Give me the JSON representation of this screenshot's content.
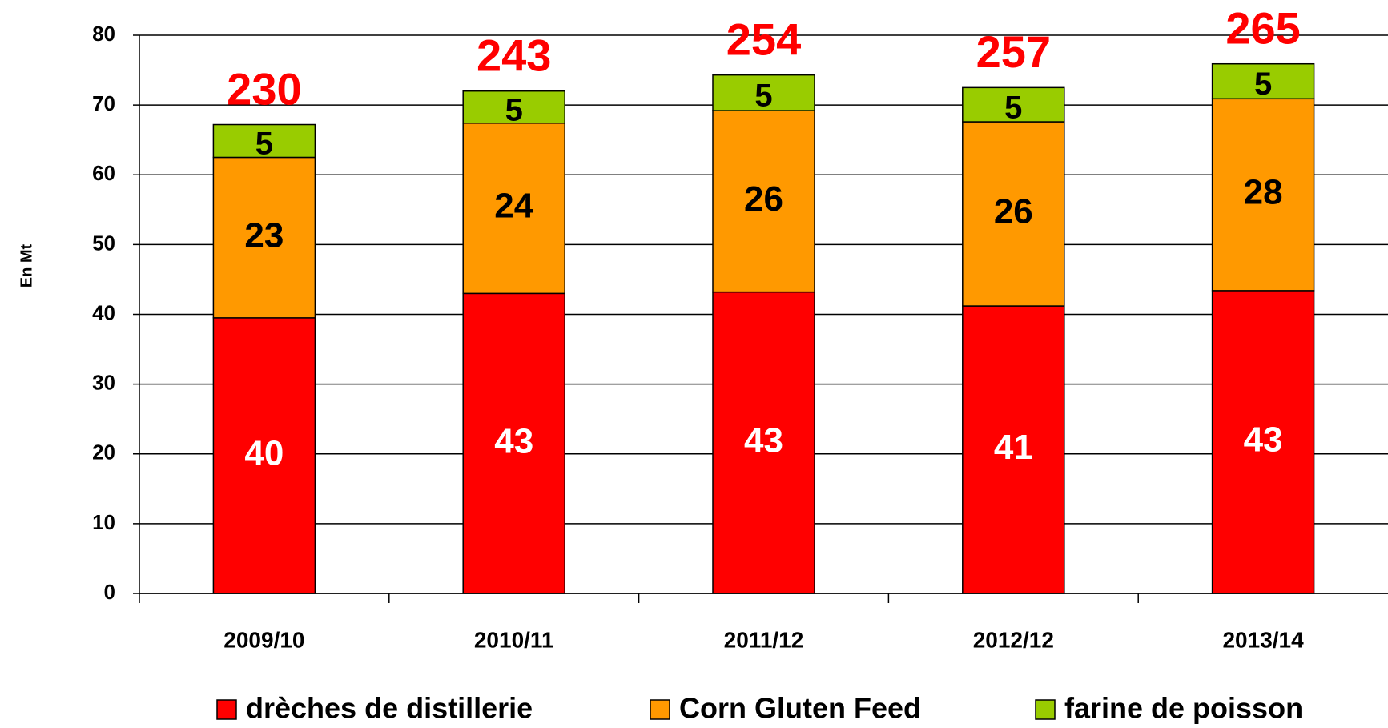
{
  "chart_data": {
    "type": "stacked_bar",
    "y_label": "En Mt",
    "categories": [
      "2009/10",
      "2010/11",
      "2011/12",
      "2012/12",
      "2013/14"
    ],
    "series": [
      {
        "name": "drèches de distillerie",
        "color": "#ff0000",
        "label_color": "#ffffff",
        "values": [
          39.5,
          43.0,
          43.2,
          41.2,
          43.4
        ],
        "value_labels": [
          "40",
          "43",
          "43",
          "41",
          "43"
        ]
      },
      {
        "name": "Corn Gluten Feed",
        "color": "#ff9900",
        "label_color": "#000000",
        "values": [
          23.0,
          24.4,
          26.0,
          26.4,
          27.5
        ],
        "value_labels": [
          "23",
          "24",
          "26",
          "26",
          "28"
        ]
      },
      {
        "name": "farine de poisson",
        "color": "#99cc00",
        "label_color": "#000000",
        "values": [
          4.7,
          4.6,
          5.1,
          4.9,
          5.0
        ],
        "value_labels": [
          "5",
          "5",
          "5",
          "5",
          "5"
        ]
      }
    ],
    "annotations": [
      "230",
      "243",
      "254",
      "257",
      "265"
    ],
    "annotation_color": "#ff0000",
    "ylim": [
      0,
      80
    ],
    "yticks": [
      0,
      10,
      20,
      30,
      40,
      50,
      60,
      70,
      80
    ],
    "grid": true,
    "legend": "bottom"
  }
}
